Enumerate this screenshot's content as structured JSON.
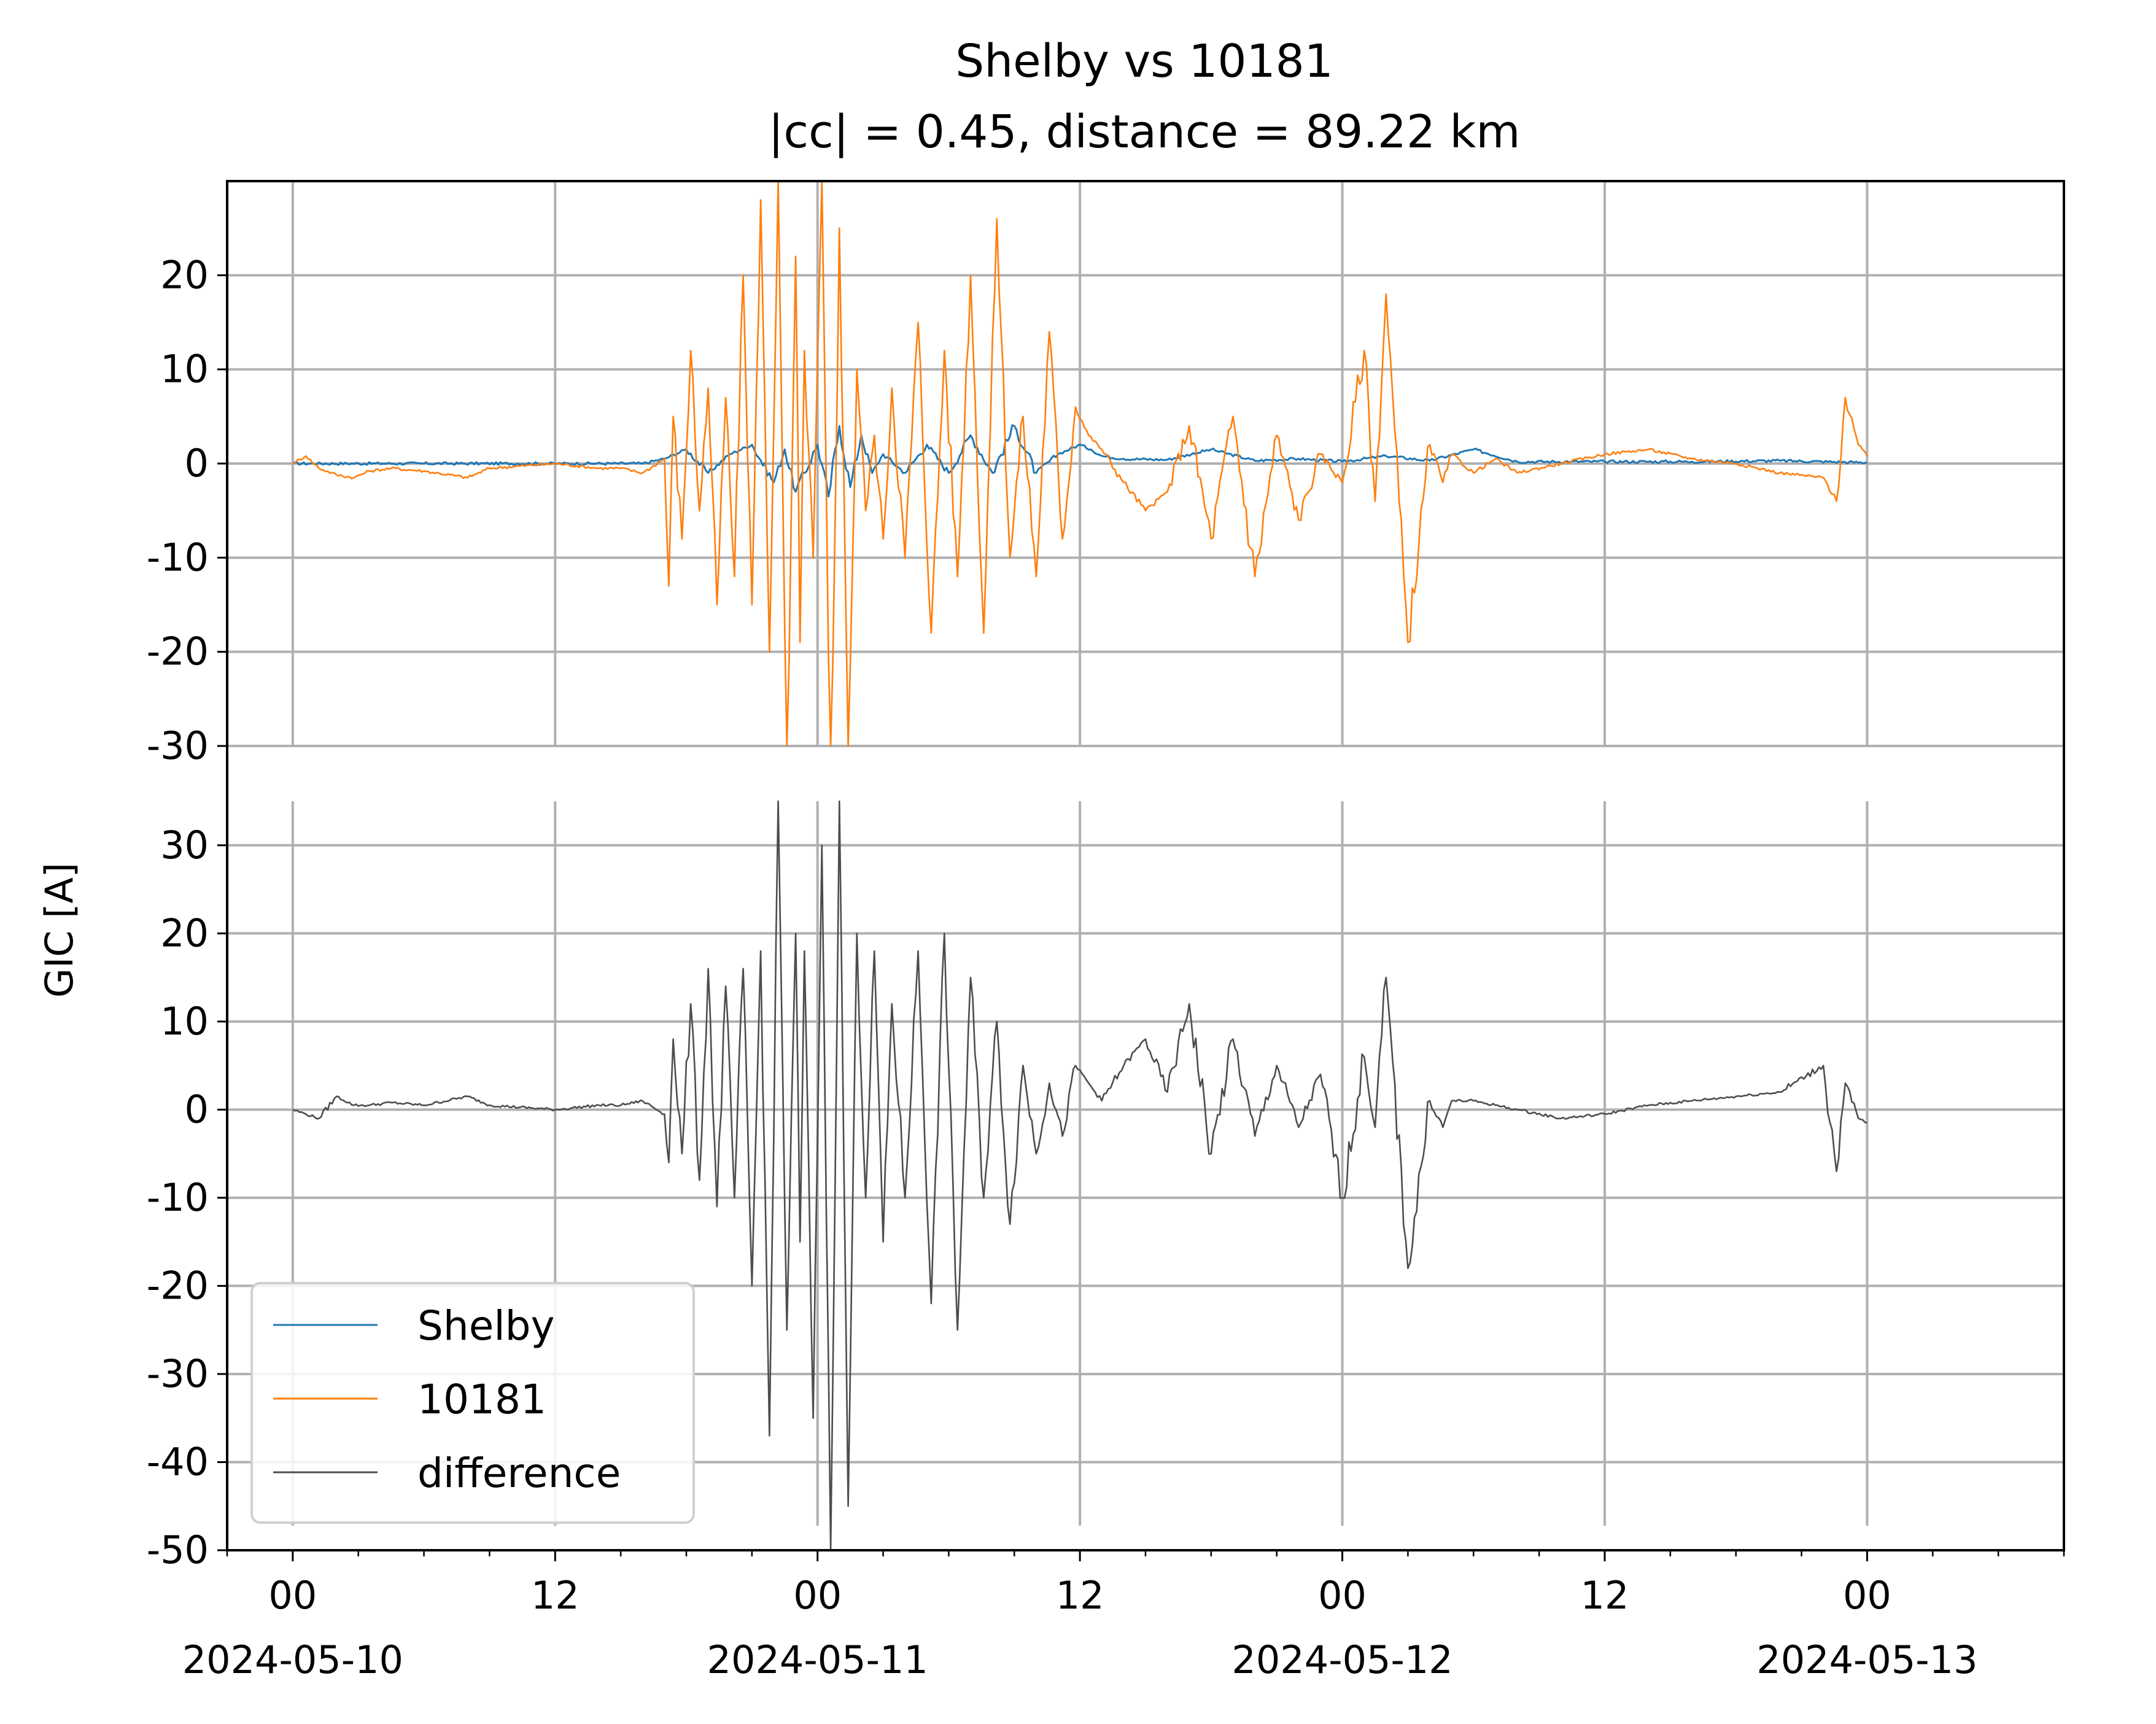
{
  "chart_data": {
    "type": "line",
    "title_line1": "Shelby vs 10181",
    "title_line2": "|cc| = 0.45, distance = 89.22 km",
    "xlabel": "",
    "ylabel": "GIC [A]",
    "grid": true,
    "legend_position": "lower-left",
    "x_range_hours": [
      -3,
      81
    ],
    "x_ticks": [
      {
        "hour": 0,
        "time": "00",
        "date": "2024-05-10"
      },
      {
        "hour": 12,
        "time": "12",
        "date": ""
      },
      {
        "hour": 24,
        "time": "00",
        "date": "2024-05-11"
      },
      {
        "hour": 36,
        "time": "12",
        "date": ""
      },
      {
        "hour": 48,
        "time": "00",
        "date": "2024-05-12"
      },
      {
        "hour": 60,
        "time": "12",
        "date": ""
      },
      {
        "hour": 72,
        "time": "00",
        "date": "2024-05-13"
      }
    ],
    "upper_panel": {
      "ylim": [
        -30,
        30
      ],
      "yticks": [
        20,
        10,
        0,
        -10,
        -20,
        -30
      ],
      "ytick_labels": [
        "20",
        "10",
        "0",
        "-10",
        "-20",
        "-30"
      ]
    },
    "lower_panel": {
      "ylim": [
        -50,
        35
      ],
      "yticks": [
        30,
        20,
        10,
        0,
        -10,
        -20,
        -30,
        -40,
        -50
      ],
      "ytick_labels": [
        "30",
        "20",
        "10",
        "0",
        "-10",
        "-20",
        "-30",
        "-40",
        "-50"
      ]
    },
    "series": [
      {
        "name": "Shelby",
        "panel": "upper",
        "color": "#1f77b4",
        "x": [
          0,
          6,
          12,
          16,
          17,
          18,
          19,
          20,
          21,
          22,
          22.5,
          23,
          24,
          24.5,
          25,
          25.5,
          26,
          26.5,
          27,
          28,
          29,
          30,
          31,
          32,
          33,
          34,
          35,
          36,
          36.5,
          37,
          38,
          40,
          42,
          44,
          46,
          48,
          50,
          52,
          54,
          56,
          60,
          64,
          68,
          72
        ],
        "y": [
          0,
          0,
          0,
          0,
          0.5,
          1.5,
          -1,
          1,
          2,
          -2,
          1.5,
          -3,
          2,
          -3.5,
          4,
          -2.5,
          3,
          -1,
          1,
          -1,
          2,
          -1,
          3,
          -1,
          4,
          -1,
          1,
          2,
          1.5,
          0.8,
          0.5,
          0.4,
          1.5,
          0.3,
          0.5,
          0.2,
          0.8,
          0.3,
          1.5,
          0.2,
          0.2,
          0.2,
          0.3,
          0.1
        ]
      },
      {
        "name": "10181",
        "panel": "upper",
        "color": "#ff7f0e",
        "x": [
          0,
          0.6,
          1.2,
          2,
          2.8,
          3.5,
          4.5,
          6,
          8,
          9,
          12,
          14,
          15,
          16,
          17,
          17.2,
          17.4,
          17.8,
          18.2,
          18.6,
          19,
          19.4,
          19.8,
          20.2,
          20.6,
          21.0,
          21.4,
          21.8,
          22.2,
          22.6,
          23.0,
          23.2,
          23.4,
          23.8,
          24.2,
          24.6,
          25.0,
          25.4,
          25.8,
          26.2,
          26.6,
          27.0,
          27.4,
          28.0,
          28.6,
          29.2,
          29.8,
          30.4,
          31.0,
          31.6,
          32.2,
          32.8,
          33.4,
          34.0,
          34.6,
          35.2,
          35.8,
          36.4,
          37.0,
          38.0,
          39.0,
          40.0,
          41.0,
          42.0,
          43.0,
          44.0,
          45.0,
          46.0,
          47.0,
          48.0,
          49.0,
          49.5,
          50.0,
          51.0,
          52.0,
          52.6,
          53.0,
          54.0,
          55.0,
          56.0,
          58.0,
          60.0,
          62.0,
          64.0,
          66.0,
          68.0,
          70.0,
          70.6,
          71.0,
          71.6,
          72.0
        ],
        "y": [
          0,
          0.8,
          -0.5,
          -1.2,
          -1.5,
          -0.8,
          -0.5,
          -0.8,
          -1.5,
          -0.5,
          0,
          -0.5,
          -0.5,
          -1,
          0.5,
          -13,
          5,
          -8,
          12,
          -5,
          8,
          -15,
          7,
          -12,
          20,
          -15,
          28,
          -20,
          30,
          -35,
          22,
          -19,
          12,
          -10,
          30,
          -38,
          25,
          -30,
          10,
          -5,
          3,
          -8,
          8,
          -10,
          15,
          -18,
          12,
          -12,
          20,
          -18,
          26,
          -10,
          5,
          -12,
          14,
          -8,
          6,
          3,
          1.5,
          -2,
          -5,
          -3,
          4,
          -8,
          5,
          -12,
          3,
          -6,
          1,
          -2,
          12,
          -4,
          18,
          -19,
          2,
          -2,
          1,
          -1,
          0.5,
          -1,
          0,
          1,
          1.5,
          0.5,
          0,
          -1,
          -1.5,
          -4,
          7,
          2,
          0.8
        ]
      },
      {
        "name": "difference",
        "panel": "lower",
        "color": "#4d4d4d",
        "x": [
          0,
          0.6,
          1.2,
          2,
          2.8,
          3.5,
          4.5,
          6,
          8,
          9,
          12,
          14,
          15,
          16,
          17,
          17.2,
          17.4,
          17.8,
          18.2,
          18.6,
          19,
          19.4,
          19.8,
          20.2,
          20.6,
          21.0,
          21.4,
          21.8,
          22.2,
          22.6,
          23.0,
          23.2,
          23.4,
          23.8,
          24.2,
          24.6,
          25.0,
          25.4,
          25.8,
          26.2,
          26.6,
          27.0,
          27.4,
          28.0,
          28.6,
          29.2,
          29.8,
          30.4,
          31.0,
          31.6,
          32.2,
          32.8,
          33.4,
          34.0,
          34.6,
          35.2,
          35.8,
          36.4,
          37.0,
          38.0,
          39.0,
          40.0,
          41.0,
          42.0,
          43.0,
          44.0,
          45.0,
          46.0,
          47.0,
          48.0,
          49.0,
          49.5,
          50.0,
          51.0,
          52.0,
          52.6,
          53.0,
          54.0,
          55.0,
          56.0,
          58.0,
          60.0,
          62.0,
          64.0,
          66.0,
          68.0,
          70.0,
          70.6,
          71.0,
          71.6,
          72.0
        ],
        "y": [
          0,
          -0.5,
          -1,
          1.5,
          0.5,
          0.5,
          0.8,
          0.5,
          1.5,
          0.5,
          0,
          0.5,
          0.5,
          1,
          -0.5,
          -6,
          8,
          -5,
          12,
          -8,
          16,
          -11,
          14,
          -10,
          16,
          -20,
          18,
          -37,
          35,
          -25,
          20,
          -15,
          18,
          -35,
          30,
          -50,
          35,
          -45,
          20,
          -10,
          18,
          -15,
          12,
          -10,
          18,
          -22,
          20,
          -25,
          15,
          -10,
          10,
          -13,
          5,
          -5,
          3,
          -3,
          5,
          3,
          1,
          5,
          8,
          2,
          12,
          -5,
          8,
          -3,
          5,
          -2,
          4,
          -10,
          6,
          -2,
          15,
          -18,
          1,
          -2,
          1,
          1,
          0.5,
          0,
          -1,
          -0.5,
          0.5,
          1,
          1.5,
          2,
          5,
          -7,
          3,
          -1,
          -1.5
        ]
      }
    ],
    "legend": [
      {
        "label": "Shelby",
        "color": "#1f77b4"
      },
      {
        "label": "10181",
        "color": "#ff7f0e"
      },
      {
        "label": "difference",
        "color": "#4d4d4d"
      }
    ]
  }
}
